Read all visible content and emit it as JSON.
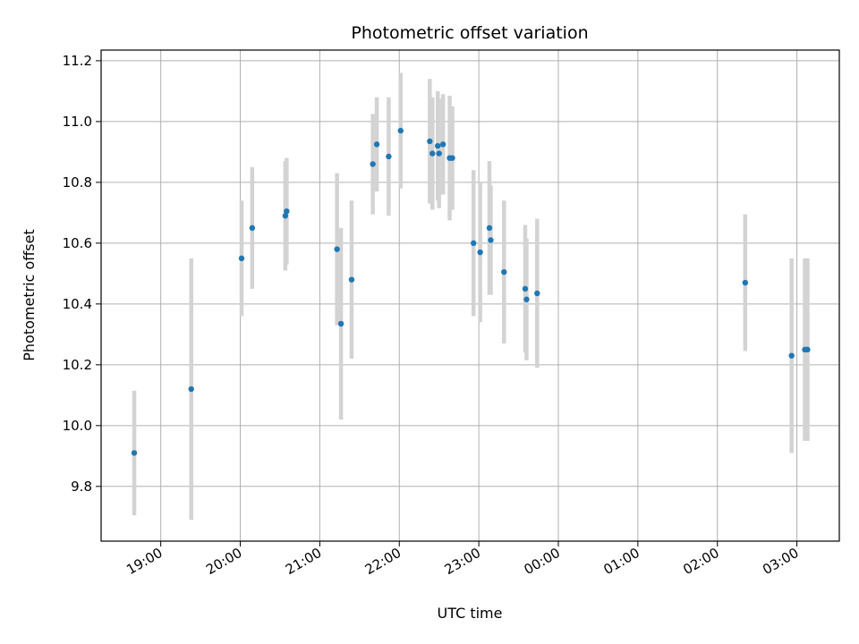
{
  "chart_data": {
    "type": "scatter",
    "title": "Photometric offset variation",
    "xlabel": "UTC time",
    "ylabel": "Photometric offset",
    "x_axis": "time",
    "x_range": [
      "18:15",
      "03:32"
    ],
    "ylim": [
      9.62,
      11.235
    ],
    "x_ticks": [
      {
        "label": "19:00",
        "time": "19:00"
      },
      {
        "label": "20:00",
        "time": "20:00"
      },
      {
        "label": "21:00",
        "time": "21:00"
      },
      {
        "label": "22:00",
        "time": "22:00"
      },
      {
        "label": "23:00",
        "time": "23:00"
      },
      {
        "label": "00:00",
        "time": "00:00"
      },
      {
        "label": "01:00",
        "time": "01:00"
      },
      {
        "label": "02:00",
        "time": "02:00"
      },
      {
        "label": "03:00",
        "time": "03:00"
      }
    ],
    "y_ticks": [
      9.8,
      10.0,
      10.2,
      10.4,
      10.6,
      10.8,
      11.0,
      11.2
    ],
    "grid": true,
    "legend": "none",
    "marker_color": "#1f77b4",
    "errorbar_color": "#d3d3d3",
    "points": [
      {
        "time": "18:40",
        "y": 9.91,
        "err": 0.205
      },
      {
        "time": "19:23",
        "y": 10.12,
        "err": 0.43
      },
      {
        "time": "20:01",
        "y": 10.55,
        "err": 0.19
      },
      {
        "time": "20:09",
        "y": 10.65,
        "err": 0.2
      },
      {
        "time": "20:34",
        "y": 10.69,
        "err": 0.18
      },
      {
        "time": "20:35",
        "y": 10.705,
        "err": 0.175
      },
      {
        "time": "21:13",
        "y": 10.58,
        "err": 0.25
      },
      {
        "time": "21:16",
        "y": 10.335,
        "err": 0.315
      },
      {
        "time": "21:24",
        "y": 10.48,
        "err": 0.26
      },
      {
        "time": "21:40",
        "y": 10.86,
        "err": 0.165
      },
      {
        "time": "21:43",
        "y": 10.925,
        "err": 0.155
      },
      {
        "time": "21:52",
        "y": 10.885,
        "err": 0.195
      },
      {
        "time": "22:01",
        "y": 10.97,
        "err": 0.19
      },
      {
        "time": "22:23",
        "y": 10.935,
        "err": 0.205
      },
      {
        "time": "22:25",
        "y": 10.895,
        "err": 0.185
      },
      {
        "time": "22:29",
        "y": 10.92,
        "err": 0.18
      },
      {
        "time": "22:30",
        "y": 10.895,
        "err": 0.18
      },
      {
        "time": "22:33",
        "y": 10.925,
        "err": 0.165
      },
      {
        "time": "22:38",
        "y": 10.88,
        "err": 0.205
      },
      {
        "time": "22:40",
        "y": 10.88,
        "err": 0.17
      },
      {
        "time": "22:56",
        "y": 10.6,
        "err": 0.24
      },
      {
        "time": "23:01",
        "y": 10.57,
        "err": 0.23
      },
      {
        "time": "23:08",
        "y": 10.65,
        "err": 0.22
      },
      {
        "time": "23:09",
        "y": 10.61,
        "err": 0.18
      },
      {
        "time": "23:19",
        "y": 10.505,
        "err": 0.235
      },
      {
        "time": "23:35",
        "y": 10.45,
        "err": 0.21
      },
      {
        "time": "23:36",
        "y": 10.415,
        "err": 0.2
      },
      {
        "time": "23:44",
        "y": 10.435,
        "err": 0.245
      },
      {
        "time": "02:21",
        "y": 10.47,
        "err": 0.225
      },
      {
        "time": "02:56",
        "y": 10.23,
        "err": 0.32
      },
      {
        "time": "03:06",
        "y": 10.25,
        "err": 0.3
      },
      {
        "time": "03:08",
        "y": 10.25,
        "err": 0.3
      }
    ]
  }
}
